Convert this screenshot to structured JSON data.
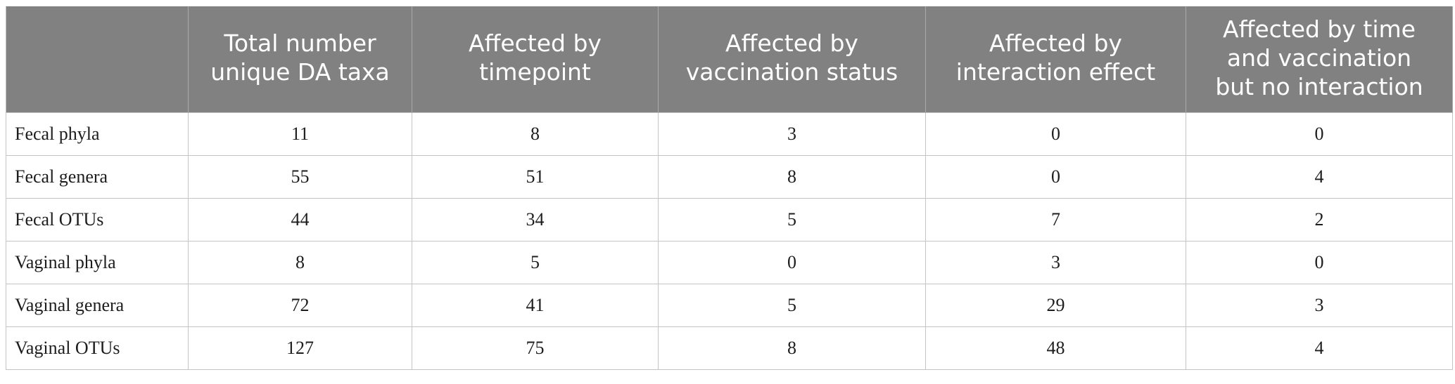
{
  "table": {
    "headers": [
      "",
      "Total number unique DA taxa",
      "Affected by timepoint",
      "Affected by vaccination status",
      "Affected by interaction effect",
      "Affected by time and vaccination but no interaction"
    ],
    "header_lines": [
      [
        ""
      ],
      [
        "Total number",
        "unique DA taxa"
      ],
      [
        "Affected by",
        "timepoint"
      ],
      [
        "Affected by",
        "vaccination status"
      ],
      [
        "Affected by",
        "interaction effect"
      ],
      [
        "Affected by time",
        "and vaccination",
        "but no interaction"
      ]
    ],
    "rows": [
      {
        "label": "Fecal phyla",
        "values": [
          "11",
          "8",
          "3",
          "0",
          "0"
        ]
      },
      {
        "label": "Fecal genera",
        "values": [
          "55",
          "51",
          "8",
          "0",
          "4"
        ]
      },
      {
        "label": "Fecal OTUs",
        "values": [
          "44",
          "34",
          "5",
          "7",
          "2"
        ]
      },
      {
        "label": "Vaginal phyla",
        "values": [
          "8",
          "5",
          "0",
          "3",
          "0"
        ]
      },
      {
        "label": "Vaginal genera",
        "values": [
          "72",
          "41",
          "5",
          "29",
          "3"
        ]
      },
      {
        "label": "Vaginal OTUs",
        "values": [
          "127",
          "75",
          "8",
          "48",
          "4"
        ]
      }
    ]
  },
  "colors": {
    "header_bg": "#808180",
    "header_text": "#ffffff",
    "grid": "#c4c4c4",
    "cell_text": "#1d1d1d"
  }
}
